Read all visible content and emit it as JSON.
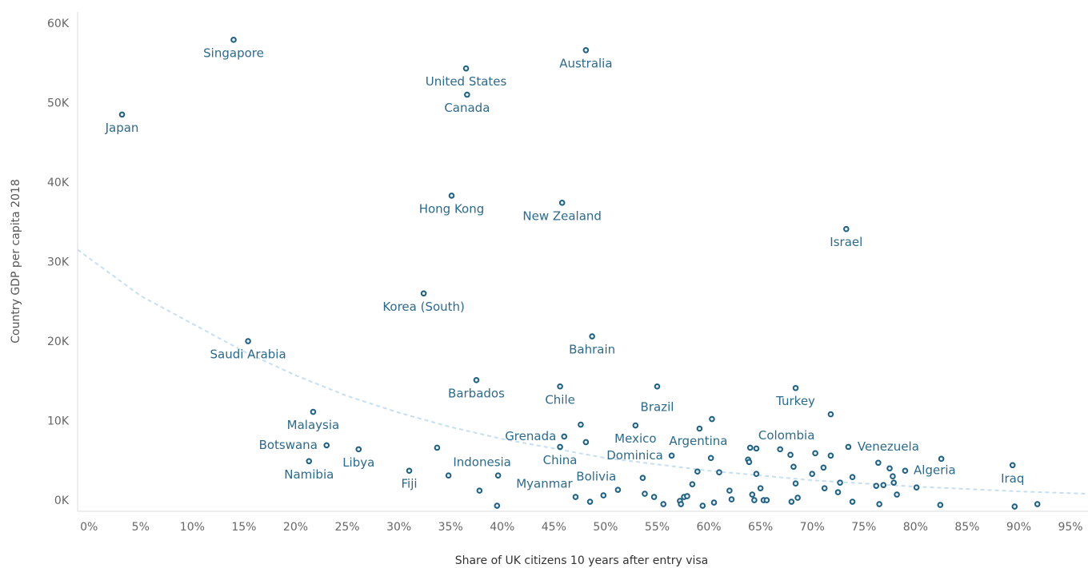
{
  "chart_data": {
    "type": "scatter",
    "x_label": "Share of UK citizens 10 years after entry visa",
    "y_label": "Country GDP per capita 2018",
    "labels": [
      "Singapore",
      "Japan",
      "United States",
      "Canada",
      "Australia",
      "Hong Kong",
      "New Zealand",
      "Israel",
      "Korea (South)",
      "Saudi Arabia",
      "Bahrain",
      "Barbados",
      "Chile",
      "Brazil",
      "Turkey",
      "Malaysia",
      "Botswana",
      "Libya",
      "Namibia",
      "Fiji",
      "Indonesia",
      "Grenada",
      "China",
      "Mexico",
      "Argentina",
      "Dominica",
      "Colombia",
      "Venezuela",
      "Algeria",
      "Iraq",
      "Myanmar",
      "Bolivia",
      null,
      null,
      null,
      null,
      null,
      null,
      null,
      null,
      null,
      null,
      null,
      null,
      null,
      null,
      null,
      null,
      null,
      null,
      null,
      null,
      null,
      null,
      null,
      null,
      null,
      null,
      null,
      null,
      null,
      null,
      null,
      null,
      null,
      null,
      null,
      null,
      null,
      null,
      null,
      null,
      null,
      null,
      null,
      null,
      null,
      null,
      null,
      null,
      null,
      null,
      null,
      null,
      null,
      null,
      null,
      null,
      null,
      null,
      null,
      null,
      null,
      null,
      null,
      null
    ],
    "x": [
      14.0,
      3.2,
      36.5,
      36.6,
      48.1,
      35.1,
      45.8,
      73.3,
      32.4,
      15.4,
      48.7,
      37.5,
      45.6,
      55.0,
      68.4,
      21.7,
      23.0,
      26.1,
      21.3,
      31.0,
      39.6,
      46.0,
      45.6,
      52.9,
      60.3,
      56.4,
      66.9,
      73.5,
      79.0,
      89.4,
      47.1,
      49.8,
      33.7,
      34.8,
      37.8,
      39.5,
      47.6,
      48.1,
      48.5,
      51.2,
      53.6,
      53.8,
      54.7,
      55.6,
      57.2,
      57.3,
      57.6,
      57.9,
      58.4,
      58.9,
      59.1,
      59.4,
      60.2,
      60.5,
      61.0,
      62.0,
      62.2,
      63.8,
      63.9,
      64.0,
      64.6,
      64.2,
      64.4,
      64.6,
      65.0,
      65.3,
      65.6,
      67.9,
      68.2,
      68.4,
      68.6,
      68.0,
      70.0,
      70.3,
      71.1,
      71.2,
      71.8,
      71.8,
      72.5,
      72.7,
      73.9,
      73.9,
      76.4,
      76.2,
      76.9,
      76.5,
      77.5,
      77.8,
      77.9,
      78.2,
      80.1,
      82.4,
      82.5,
      89.6,
      91.8
    ],
    "values": [
      58200,
      48800,
      54600,
      51300,
      56900,
      38600,
      37700,
      34400,
      26300,
      20300,
      20900,
      15400,
      14600,
      14600,
      14400,
      11400,
      7200,
      6700,
      5200,
      4000,
      3400,
      8300,
      7000,
      9700,
      10500,
      5900,
      6700,
      7000,
      4000,
      4700,
      700,
      900,
      6900,
      3400,
      1500,
      -400,
      9800,
      7600,
      100,
      1600,
      3100,
      1100,
      700,
      -200,
      200,
      -200,
      700,
      800,
      2300,
      3900,
      9300,
      -400,
      5600,
      0,
      3800,
      1500,
      400,
      5400,
      5100,
      6900,
      6800,
      1000,
      300,
      3600,
      1800,
      300,
      300,
      6000,
      4500,
      2400,
      600,
      100,
      3600,
      6200,
      4400,
      1800,
      5900,
      11100,
      1300,
      2500,
      3200,
      100,
      5000,
      2100,
      2200,
      -200,
      4300,
      3300,
      2500,
      1000,
      1900,
      -300,
      5500,
      -500,
      -200
    ],
    "trendline": {
      "x": [
        -1.1,
        5,
        10,
        15,
        20,
        25,
        30,
        35,
        40,
        50,
        60,
        70,
        80,
        90,
        96.7
      ],
      "values": [
        31800,
        26000,
        22500,
        19000,
        16000,
        13400,
        11300,
        9500,
        8000,
        5600,
        4000,
        2800,
        2000,
        1400,
        1100
      ]
    },
    "xlim": [
      -1.1,
      96.7
    ],
    "ylim": [
      -1100,
      61700
    ],
    "xticks": [
      {
        "value": 0,
        "label": "0%"
      },
      {
        "value": 5,
        "label": "5%"
      },
      {
        "value": 10,
        "label": "10%"
      },
      {
        "value": 15,
        "label": "15%"
      },
      {
        "value": 20,
        "label": "20%"
      },
      {
        "value": 25,
        "label": "25%"
      },
      {
        "value": 30,
        "label": "30%"
      },
      {
        "value": 35,
        "label": "35%"
      },
      {
        "value": 40,
        "label": "40%"
      },
      {
        "value": 45,
        "label": "45%"
      },
      {
        "value": 50,
        "label": "50%"
      },
      {
        "value": 55,
        "label": "55%"
      },
      {
        "value": 60,
        "label": "60%"
      },
      {
        "value": 65,
        "label": "65%"
      },
      {
        "value": 70,
        "label": "70%"
      },
      {
        "value": 75,
        "label": "75%"
      },
      {
        "value": 80,
        "label": "80%"
      },
      {
        "value": 85,
        "label": "85%"
      },
      {
        "value": 90,
        "label": "90%"
      },
      {
        "value": 95,
        "label": "95%"
      }
    ],
    "yticks": [
      {
        "value": 0,
        "label": "0K"
      },
      {
        "value": 10000,
        "label": "10K"
      },
      {
        "value": 20000,
        "label": "20K"
      },
      {
        "value": 30000,
        "label": "30K"
      },
      {
        "value": 40000,
        "label": "40K"
      },
      {
        "value": 50000,
        "label": "50K"
      },
      {
        "value": 60000,
        "label": "60K"
      }
    ],
    "point_color": "#1f5f7f",
    "label_color": "#2d6a8a",
    "trend_color": "#c6dff0"
  }
}
